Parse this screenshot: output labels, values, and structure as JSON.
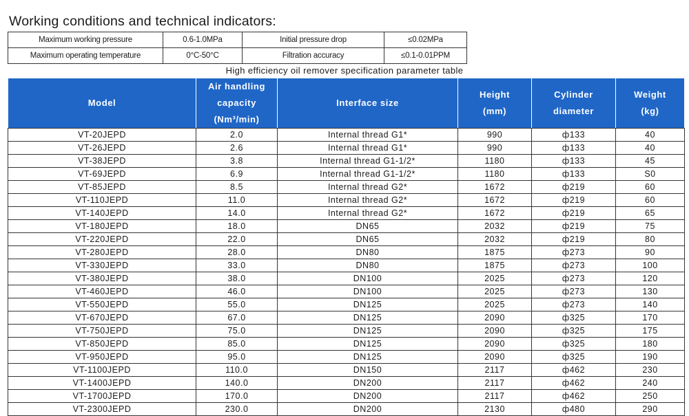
{
  "page_title": "Working conditions and technical indicators:",
  "conditions": {
    "rows": [
      [
        "Maximum working pressure",
        "0.6-1.0MPa",
        "Initial pressure drop",
        "≤0.02MPa"
      ],
      [
        "Maximum operating temperature",
        "0°C-50°C",
        "Filtration accuracy",
        "≤0.1-0.01PPM"
      ]
    ]
  },
  "spec_table": {
    "title": "High efficiency oil remover specification parameter table",
    "header_color": "#1f66c7",
    "headers": [
      [
        "Model"
      ],
      [
        "Air handling",
        "capacity",
        "(Nm³/min)"
      ],
      [
        "Interface size"
      ],
      [
        "Height",
        "(mm)"
      ],
      [
        "Cylinder",
        "diameter"
      ],
      [
        "Weight",
        "(kg)"
      ]
    ],
    "rows": [
      [
        "VT-20JEPD",
        "2.0",
        "Internal thread G1*",
        "990",
        "ф133",
        "40"
      ],
      [
        "VT-26JEPD",
        "2.6",
        "Internal thread G1*",
        "990",
        "ф133",
        "40"
      ],
      [
        "VT-38JEPD",
        "3.8",
        "Internal thread G1-1/2*",
        "1180",
        "ф133",
        "45"
      ],
      [
        "VT-69JEPD",
        "6.9",
        "Internal thread G1-1/2*",
        "1180",
        "ф133",
        "S0"
      ],
      [
        "VT-85JEPD",
        "8.5",
        "Internal thread G2*",
        "1672",
        "ф219",
        "60"
      ],
      [
        "VT-110JEPD",
        "11.0",
        "Internal thread G2*",
        "1672",
        "ф219",
        "60"
      ],
      [
        "VT-140JEPD",
        "14.0",
        "Internal thread G2*",
        "1672",
        "ф219",
        "65"
      ],
      [
        "VT-180JEPD",
        "18.0",
        "DN65",
        "2032",
        "ф219",
        "75"
      ],
      [
        "VT-220JEPD",
        "22.0",
        "DN65",
        "2032",
        "ф219",
        "80"
      ],
      [
        "VT-280JEPD",
        "28.0",
        "DN80",
        "1875",
        "ф273",
        "90"
      ],
      [
        "VT-330JEPD",
        "33.0",
        "DN80",
        "1875",
        "ф273",
        "100"
      ],
      [
        "VT-380JEPD",
        "38.0",
        "DN100",
        "2025",
        "ф273",
        "120"
      ],
      [
        "VT-460JEPD",
        "46.0",
        "DN100",
        "2025",
        "ф273",
        "130"
      ],
      [
        "VT-550JEPD",
        "55.0",
        "DN125",
        "2025",
        "ф273",
        "140"
      ],
      [
        "VT-670JEPD",
        "67.0",
        "DN125",
        "2090",
        "ф325",
        "170"
      ],
      [
        "VT-750JEPD",
        "75.0",
        "DN125",
        "2090",
        "ф325",
        "175"
      ],
      [
        "VT-850JEPD",
        "85.0",
        "DN125",
        "2090",
        "ф325",
        "180"
      ],
      [
        "VT-950JEPD",
        "95.0",
        "DN125",
        "2090",
        "ф325",
        "190"
      ],
      [
        "VT-1100JEPD",
        "110.0",
        "DN150",
        "2117",
        "ф462",
        "230"
      ],
      [
        "VT-1400JEPD",
        "140.0",
        "DN200",
        "2117",
        "ф462",
        "240"
      ],
      [
        "VT-1700JEPD",
        "170.0",
        "DN200",
        "2117",
        "ф462",
        "250"
      ],
      [
        "VT-2300JEPD",
        "230.0",
        "DN200",
        "2130",
        "ф480",
        "290"
      ]
    ]
  }
}
